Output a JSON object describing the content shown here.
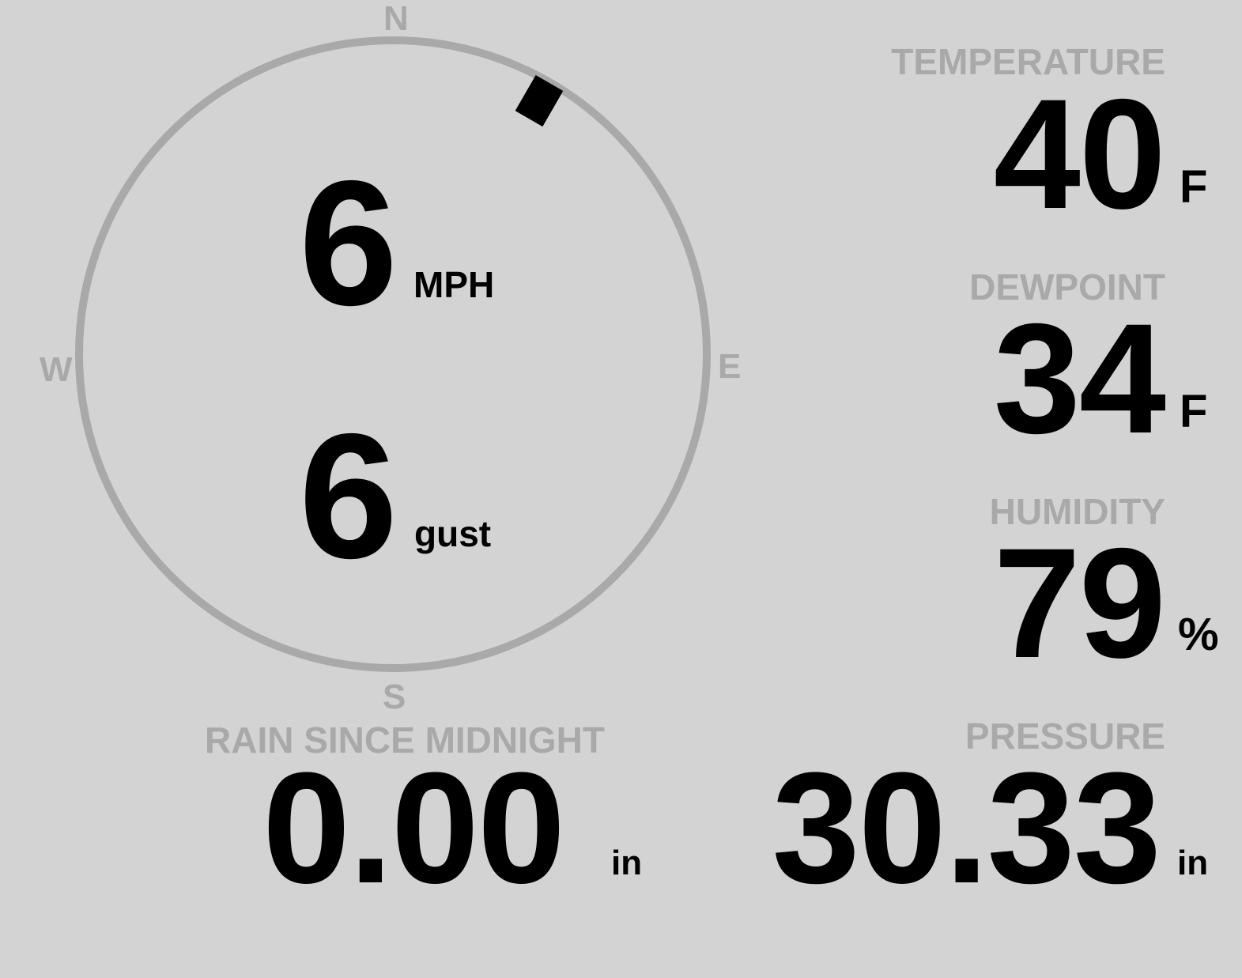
{
  "wind": {
    "speed": "6",
    "speed_unit": "MPH",
    "gust": "6",
    "gust_unit": "gust",
    "direction_deg": 30,
    "compass": {
      "n": "N",
      "e": "E",
      "s": "S",
      "w": "W"
    }
  },
  "temperature": {
    "label": "TEMPERATURE",
    "value": "40",
    "unit": "F"
  },
  "dewpoint": {
    "label": "DEWPOINT",
    "value": "34",
    "unit": "F"
  },
  "humidity": {
    "label": "HUMIDITY",
    "value": "79",
    "unit": "%"
  },
  "rain": {
    "label": "RAIN SINCE MIDNIGHT",
    "value": "0.00",
    "unit": "in"
  },
  "pressure": {
    "label": "PRESSURE",
    "value": "30.33",
    "unit": "in"
  },
  "colors": {
    "background": "#d3d3d3",
    "label": "#a9a9a9",
    "value": "#000000",
    "ring": "#a9a9a9"
  }
}
